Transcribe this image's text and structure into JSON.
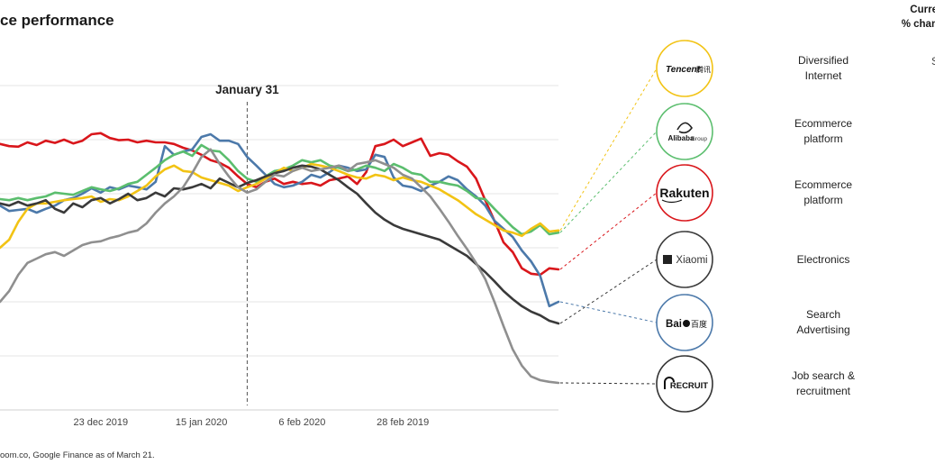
{
  "header": {
    "title": "ce performance",
    "top_right_line1": "Curren",
    "top_right_line2": "% chang"
  },
  "source": "oom.co, Google Finance as of March 21.",
  "companies": [
    {
      "key": "tencent",
      "logo_text": "Tencent",
      "logo_sub": "腾讯",
      "category_line1": "Diversified",
      "category_line2": "Internet",
      "color": "#F2C314",
      "cut_value": "S"
    },
    {
      "key": "alibaba",
      "logo_text": "Alibaba",
      "logo_sub": "Group",
      "category_line1": "Ecommerce",
      "category_line2": "platform",
      "color": "#5BBE6E",
      "cut_value": ""
    },
    {
      "key": "rakuten",
      "logo_text": "Rakuten",
      "logo_sub": "",
      "category_line1": "Ecommerce",
      "category_line2": "platform",
      "color": "#D9161B",
      "cut_value": ""
    },
    {
      "key": "xiaomi",
      "logo_text": "Xiaomi",
      "logo_sub": "mi",
      "category_line1": "Electronics",
      "category_line2": "",
      "color": "#3a3a3a",
      "cut_value": ""
    },
    {
      "key": "baidu",
      "logo_text": "Bai",
      "logo_sub": "百度",
      "category_line1": "Search",
      "category_line2": "Advertising",
      "color": "#4C79AA",
      "cut_value": ""
    },
    {
      "key": "recruit",
      "logo_text": "RECRUIT",
      "logo_sub": "",
      "category_line1": "Job search &",
      "category_line2": "recruitment",
      "color": "#333333",
      "cut_value": ""
    }
  ],
  "chart_data": {
    "type": "line",
    "title": "",
    "xlabel": "",
    "ylabel": "",
    "x_tick_labels": [
      "23 dec 2019",
      "15 jan 2020",
      "6 feb 2020",
      "28 feb 2019"
    ],
    "x_tick_index": [
      11,
      22,
      33,
      44
    ],
    "annotation": {
      "label": "January 31",
      "index": 27
    },
    "ylim": [
      0,
      6
    ],
    "grid": true,
    "series": [
      {
        "key": "rakuten",
        "color": "#D9161B",
        "values": [
          4.92,
          4.88,
          4.87,
          4.95,
          4.9,
          4.98,
          4.94,
          5.0,
          4.93,
          4.98,
          5.1,
          5.12,
          5.03,
          4.99,
          5.0,
          4.95,
          4.98,
          4.95,
          4.95,
          4.92,
          4.85,
          4.8,
          4.72,
          4.62,
          4.57,
          4.48,
          4.32,
          4.18,
          4.12,
          4.22,
          4.28,
          4.18,
          4.22,
          4.18,
          4.2,
          4.15,
          4.25,
          4.28,
          4.32,
          4.18,
          4.4,
          4.88,
          4.92,
          5.0,
          4.88,
          4.95,
          5.02,
          4.7,
          4.75,
          4.72,
          4.6,
          4.5,
          4.28,
          3.88,
          3.5,
          3.1,
          2.92,
          2.62,
          2.52,
          2.5,
          2.62,
          2.6
        ]
      },
      {
        "key": "baidu",
        "color": "#4C79AA",
        "values": [
          3.78,
          3.68,
          3.7,
          3.72,
          3.65,
          3.72,
          3.78,
          3.88,
          3.92,
          4.0,
          4.1,
          4.02,
          4.12,
          4.08,
          4.15,
          4.12,
          4.08,
          4.22,
          4.88,
          4.72,
          4.78,
          4.82,
          5.05,
          5.1,
          4.98,
          4.98,
          4.92,
          4.68,
          4.52,
          4.35,
          4.18,
          4.12,
          4.15,
          4.22,
          4.35,
          4.3,
          4.4,
          4.52,
          4.48,
          4.42,
          4.45,
          4.72,
          4.68,
          4.3,
          4.15,
          4.12,
          4.05,
          4.15,
          4.22,
          4.32,
          4.25,
          4.08,
          3.95,
          3.78,
          3.5,
          3.35,
          3.2,
          2.95,
          2.75,
          2.48,
          1.92,
          2.0
        ]
      },
      {
        "key": "alibaba",
        "color": "#5BBE6E",
        "values": [
          3.9,
          3.88,
          3.92,
          3.88,
          3.92,
          3.95,
          4.02,
          4.0,
          3.98,
          4.05,
          4.12,
          4.08,
          4.05,
          4.1,
          4.18,
          4.22,
          4.35,
          4.48,
          4.62,
          4.72,
          4.78,
          4.7,
          4.9,
          4.8,
          4.78,
          4.62,
          4.42,
          4.28,
          4.22,
          4.32,
          4.42,
          4.45,
          4.52,
          4.62,
          4.58,
          4.62,
          4.52,
          4.48,
          4.42,
          4.45,
          4.52,
          4.48,
          4.42,
          4.55,
          4.48,
          4.38,
          4.35,
          4.22,
          4.22,
          4.18,
          4.15,
          4.05,
          3.92,
          3.9,
          3.72,
          3.55,
          3.38,
          3.25,
          3.3,
          3.42,
          3.25,
          3.28
        ]
      },
      {
        "key": "tencent",
        "color": "#F2C314",
        "values": [
          3.0,
          3.15,
          3.48,
          3.72,
          3.82,
          3.82,
          3.85,
          3.88,
          3.9,
          3.92,
          3.95,
          3.85,
          3.9,
          3.88,
          3.95,
          4.05,
          4.15,
          4.32,
          4.45,
          4.52,
          4.42,
          4.4,
          4.3,
          4.25,
          4.2,
          4.15,
          4.05,
          4.12,
          4.18,
          4.28,
          4.38,
          4.48,
          4.42,
          4.48,
          4.55,
          4.52,
          4.48,
          4.42,
          4.35,
          4.3,
          4.28,
          4.35,
          4.32,
          4.25,
          4.3,
          4.25,
          4.22,
          4.15,
          4.08,
          3.98,
          3.88,
          3.75,
          3.62,
          3.52,
          3.42,
          3.32,
          3.28,
          3.22,
          3.35,
          3.45,
          3.3,
          3.32
        ]
      },
      {
        "key": "xiaomi",
        "color": "#3a3a3a",
        "values": [
          3.82,
          3.78,
          3.85,
          3.78,
          3.82,
          3.88,
          3.72,
          3.65,
          3.82,
          3.75,
          3.88,
          3.92,
          3.82,
          3.9,
          4.0,
          3.88,
          3.92,
          4.02,
          3.95,
          4.1,
          4.08,
          4.12,
          4.18,
          4.1,
          4.28,
          4.2,
          4.12,
          4.2,
          4.25,
          4.32,
          4.38,
          4.42,
          4.48,
          4.52,
          4.5,
          4.45,
          4.35,
          4.25,
          4.12,
          4.0,
          3.82,
          3.65,
          3.52,
          3.42,
          3.35,
          3.3,
          3.25,
          3.2,
          3.15,
          3.05,
          2.95,
          2.85,
          2.7,
          2.55,
          2.38,
          2.2,
          2.05,
          1.92,
          1.82,
          1.75,
          1.65,
          1.6
        ]
      },
      {
        "key": "recruit",
        "color": "#8f8f8f",
        "values": [
          2.0,
          2.2,
          2.5,
          2.72,
          2.8,
          2.88,
          2.92,
          2.85,
          2.95,
          3.05,
          3.1,
          3.12,
          3.18,
          3.22,
          3.28,
          3.32,
          3.45,
          3.65,
          3.82,
          3.95,
          4.12,
          4.38,
          4.68,
          4.82,
          4.55,
          4.32,
          4.12,
          4.02,
          4.08,
          4.22,
          4.35,
          4.32,
          4.42,
          4.48,
          4.42,
          4.45,
          4.48,
          4.52,
          4.42,
          4.55,
          4.58,
          4.62,
          4.55,
          4.48,
          4.35,
          4.28,
          4.12,
          3.95,
          3.72,
          3.48,
          3.22,
          2.98,
          2.72,
          2.42,
          2.0,
          1.55,
          1.12,
          0.82,
          0.62,
          0.55,
          0.52,
          0.5
        ]
      }
    ]
  }
}
